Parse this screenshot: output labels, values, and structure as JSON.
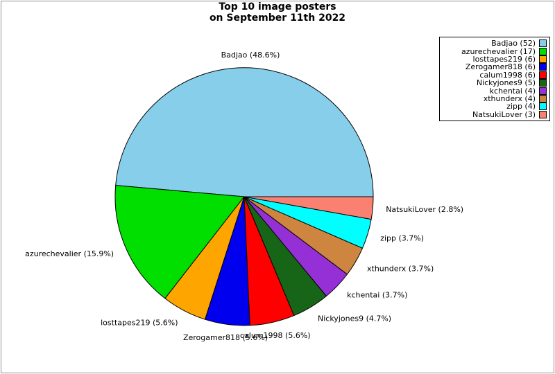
{
  "figure": {
    "title_line1": "Top 10 image posters",
    "title_line2": "on September 11th 2022"
  },
  "chart_data": {
    "type": "pie",
    "title": "Top 10 image posters on September 11th 2022",
    "start_angle_deg": 0,
    "direction": "counterclockwise",
    "legend_position": "top-right",
    "figure_border_color": "#8f8f8f",
    "slice_outline_color": "#000000",
    "slices": [
      {
        "name": "badjao",
        "label": "Badjao",
        "count": 52,
        "percent": 48.6,
        "callout": "Badjao (48.6%)",
        "legend_label": "Badjao (52)",
        "color": "#87CEEB"
      },
      {
        "name": "azurechevalier",
        "label": "azurechevalier",
        "count": 17,
        "percent": 15.9,
        "callout": "azurechevalier (15.9%)",
        "legend_label": "azurechevalier (17)",
        "color": "#00DF00"
      },
      {
        "name": "losttapes219",
        "label": "losttapes219",
        "count": 6,
        "percent": 5.6,
        "callout": "losttapes219 (5.6%)",
        "legend_label": "losttapes219 (6)",
        "color": "#FFA500"
      },
      {
        "name": "zerogamer818",
        "label": "Zerogamer818",
        "count": 6,
        "percent": 5.6,
        "callout": "Zerogamer818 (5.6%)",
        "legend_label": "Zerogamer818 (6)",
        "color": "#0000EE"
      },
      {
        "name": "calum1998",
        "label": "calum1998",
        "count": 6,
        "percent": 5.6,
        "callout": "calum1998 (5.6%)",
        "legend_label": "calum1998 (6)",
        "color": "#FF0000"
      },
      {
        "name": "nickyjones9",
        "label": "Nickyjones9",
        "count": 5,
        "percent": 4.7,
        "callout": "Nickyjones9 (4.7%)",
        "legend_label": "Nickyjones9 (5)",
        "color": "#176617"
      },
      {
        "name": "kchentai",
        "label": "kchentai",
        "count": 4,
        "percent": 3.7,
        "callout": "kchentai (3.7%)",
        "legend_label": "kchentai (4)",
        "color": "#9430D6"
      },
      {
        "name": "xthunderx",
        "label": "xthunderx",
        "count": 4,
        "percent": 3.7,
        "callout": "xthunderx (3.7%)",
        "legend_label": "xthunderx (4)",
        "color": "#CD853F"
      },
      {
        "name": "zipp",
        "label": "zipp",
        "count": 4,
        "percent": 3.7,
        "callout": "zipp (3.7%)",
        "legend_label": "zipp (4)",
        "color": "#00FFFF"
      },
      {
        "name": "natsukilover",
        "label": "NatsukiLover",
        "count": 3,
        "percent": 2.8,
        "callout": "NatsukiLover (2.8%)",
        "legend_label": "NatsukiLover (3)",
        "color": "#FA8072"
      }
    ]
  }
}
